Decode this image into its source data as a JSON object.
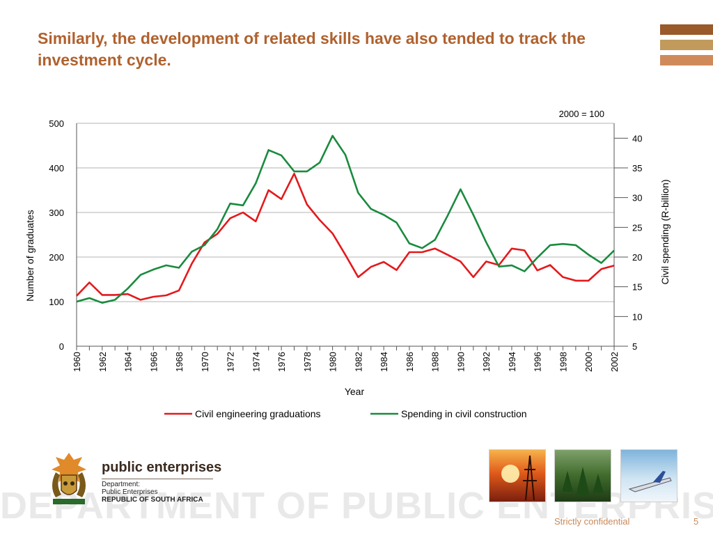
{
  "slide": {
    "title": "Similarly, the development of related skills have also tended to track the investment cycle.",
    "accent_colors": [
      "#9a5a2a",
      "#c19a5c",
      "#d08a5a"
    ]
  },
  "chart_data": {
    "type": "line",
    "title": "",
    "xlabel": "Year",
    "ylabel_left": "Number of graduates",
    "ylabel_right": "Civil spending (R-billion)",
    "right_axis_note": "2000 = 100",
    "x": [
      1960,
      1961,
      1962,
      1963,
      1964,
      1965,
      1966,
      1967,
      1968,
      1969,
      1970,
      1971,
      1972,
      1973,
      1974,
      1975,
      1976,
      1977,
      1978,
      1979,
      1980,
      1981,
      1982,
      1983,
      1984,
      1985,
      1986,
      1987,
      1988,
      1989,
      1990,
      1991,
      1992,
      1993,
      1994,
      1995,
      1996,
      1997,
      1998,
      1999,
      2000,
      2001,
      2002
    ],
    "x_tick_labels": [
      "1960",
      "1962",
      "1964",
      "1966",
      "1968",
      "1970",
      "1972",
      "1974",
      "1976",
      "1978",
      "1980",
      "1982",
      "1984",
      "1986",
      "1988",
      "1990",
      "1992",
      "1994",
      "1996",
      "1998",
      "2000",
      "2002"
    ],
    "ylim_left": [
      0,
      500
    ],
    "yticks_left": [
      "0",
      "100",
      "200",
      "300",
      "400",
      "500"
    ],
    "ylim_right": [
      5,
      42.5
    ],
    "yticks_right": [
      "5",
      "10",
      "15",
      "20",
      "25",
      "30",
      "35",
      "40"
    ],
    "grid": "horizontal",
    "legend_position": "bottom",
    "series": [
      {
        "name": "Civil engineering graduations",
        "axis": "left",
        "color": "#e3191c",
        "values": [
          113,
          143,
          115,
          115,
          117,
          104,
          111,
          114,
          125,
          185,
          233,
          252,
          287,
          300,
          280,
          350,
          330,
          387,
          318,
          283,
          253,
          205,
          155,
          178,
          189,
          171,
          211,
          211,
          219,
          205,
          190,
          155,
          190,
          182,
          219,
          215,
          170,
          182,
          155,
          147,
          147,
          173,
          181
        ]
      },
      {
        "name": "Spending in civil construction",
        "axis": "right",
        "color": "#1a8a3e",
        "values": [
          12.5,
          13.1,
          12.3,
          12.8,
          14.7,
          17.0,
          17.9,
          18.6,
          18.2,
          20.9,
          22.0,
          24.7,
          29.0,
          28.7,
          32.4,
          38.0,
          37.1,
          34.4,
          34.4,
          35.9,
          40.4,
          37.2,
          30.8,
          28.1,
          27.1,
          25.8,
          22.3,
          21.5,
          22.9,
          27.0,
          31.4,
          27.1,
          22.5,
          18.4,
          18.6,
          17.6,
          19.9,
          22.0,
          22.2,
          22.0,
          20.4,
          19.0,
          21.1
        ]
      }
    ]
  },
  "footer": {
    "brand": "public enterprises",
    "dept_line1": "Department:",
    "dept_line2": "Public Enterprises",
    "dept_line3": "REPUBLIC OF SOUTH AFRICA",
    "watermark": "DEPARTMENT OF PUBLIC ENTERPRISES",
    "confidential": "Strictly confidential",
    "page_number": "5"
  }
}
